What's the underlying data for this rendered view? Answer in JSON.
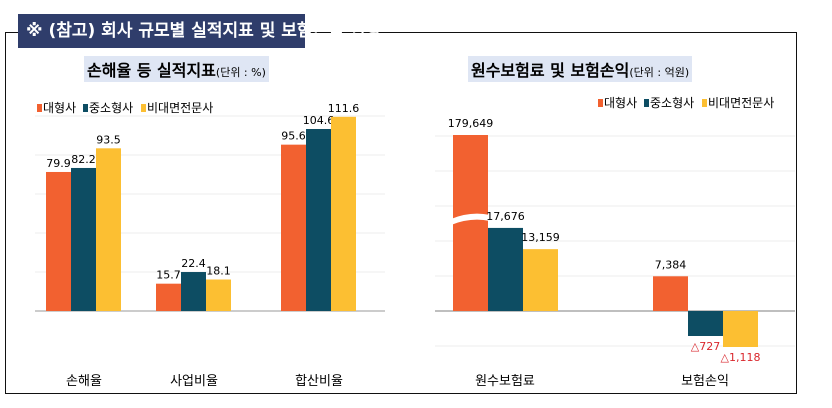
{
  "title": "※ (참고) 회사 규모별 실적지표 및 보험손익 현황",
  "colors": {
    "대형사": "#f26130",
    "중소형사": "#0d4d63",
    "비대면전문사": "#fcbf32",
    "negative_label": "#d9262c",
    "title_bg": "#2f3d6b"
  },
  "chart_data": [
    {
      "type": "bar",
      "title": "손해율 등 실적지표",
      "unit": "(단위 : %)",
      "legend_position": "top-left",
      "categories": [
        "손해율",
        "사업비율",
        "합산비율"
      ],
      "series": [
        {
          "name": "대형사",
          "values": [
            79.9,
            15.7,
            95.6
          ],
          "labels": [
            "79.9",
            "15.7",
            "95.6"
          ]
        },
        {
          "name": "중소형사",
          "values": [
            82.2,
            22.4,
            104.6
          ],
          "labels": [
            "82.2",
            "22.4",
            "104.6"
          ]
        },
        {
          "name": "비대면전문사",
          "values": [
            93.5,
            18.1,
            111.6
          ],
          "labels": [
            "93.5",
            "18.1",
            "111.6"
          ]
        }
      ]
    },
    {
      "type": "bar",
      "title": "원수보험료 및 보험손익",
      "unit": "(단위 : 억원)",
      "legend_position": "top-right",
      "axis_break": true,
      "categories": [
        "원수보험료",
        "보험손익"
      ],
      "series": [
        {
          "name": "대형사",
          "values": [
            179649,
            7384
          ],
          "labels": [
            "179,649",
            "7,384"
          ]
        },
        {
          "name": "중소형사",
          "values": [
            17676,
            -727
          ],
          "labels": [
            "17,676",
            "△727"
          ]
        },
        {
          "name": "비대면전문사",
          "values": [
            13159,
            -1118
          ],
          "labels": [
            "13,159",
            "△1,118"
          ]
        }
      ]
    }
  ]
}
